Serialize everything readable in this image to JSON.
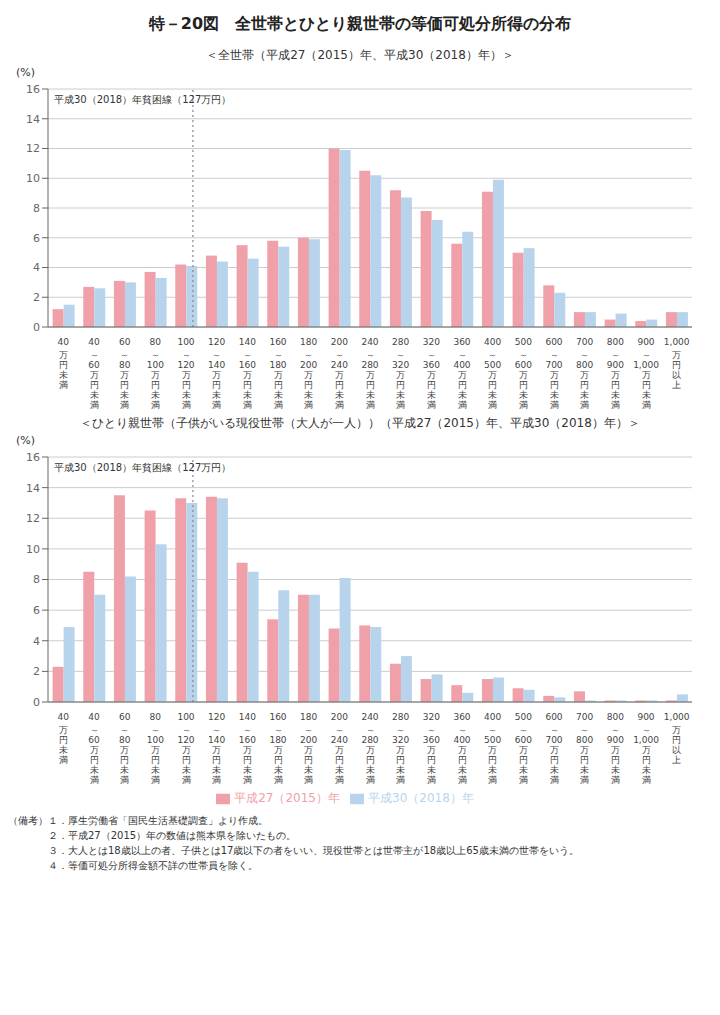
{
  "title": "特－20図　全世帯とひとり親世帯の等価可処分所得の分布",
  "footnotes": [
    "（備考）１．厚生労働省「国民生活基礎調査」より作成。",
    "　　　　２．平成27（2015）年の数値は熊本県を除いたもの。",
    "　　　　３．大人とは18歳以上の者、子供とは17歳以下の者をいい、現役世帯とは世帯主が18歳以上65歳未満の世帯をいう。",
    "　　　　４．等価可処分所得金額不詳の世帯員を除く。"
  ],
  "chart_data": [
    {
      "type": "bar",
      "subtitle": "＜全世帯（平成27（2015）年、平成30（2018）年）＞",
      "ylabel": "(%)",
      "categories": [
        "40\n万\n円\n未\n満",
        "40\n～\n60\n万\n円\n未\n満",
        "60\n～\n80\n万\n円\n未\n満",
        "80\n～\n100\n万\n円\n未\n満",
        "100\n～\n120\n万\n円\n未\n満",
        "120\n～\n140\n万\n円\n未\n満",
        "140\n～\n160\n万\n円\n未\n満",
        "160\n～\n180\n万\n円\n未\n満",
        "180\n～\n200\n万\n円\n未\n満",
        "200\n～\n240\n万\n円\n未\n満",
        "240\n～\n280\n万\n円\n未\n満",
        "280\n～\n320\n万\n円\n未\n満",
        "320\n～\n360\n万\n円\n未\n満",
        "360\n～\n400\n万\n円\n未\n満",
        "400\n～\n500\n万\n円\n未\n満",
        "500\n～\n600\n万\n円\n未\n満",
        "600\n～\n700\n万\n円\n未\n満",
        "700\n～\n800\n万\n円\n未\n満",
        "800\n～\n900\n万\n円\n未\n満",
        "900\n～\n1,000\n万\n円\n未\n満",
        "1,000\n万\n円\n以\n上"
      ],
      "series": [
        {
          "name": "平成27（2015）年",
          "color": "#F0A0A8",
          "values": [
            1.2,
            2.7,
            3.1,
            3.7,
            4.2,
            4.8,
            5.5,
            5.8,
            6.0,
            12.0,
            10.5,
            9.2,
            7.8,
            5.6,
            9.1,
            5.0,
            2.8,
            1.0,
            0.5,
            0.4,
            1.0
          ]
        },
        {
          "name": "平成30（2018）年",
          "color": "#B8D4EC",
          "values": [
            1.5,
            2.6,
            3.0,
            3.3,
            4.1,
            4.4,
            4.6,
            5.4,
            5.9,
            11.9,
            10.2,
            8.7,
            7.2,
            6.4,
            9.9,
            5.3,
            2.3,
            1.0,
            0.9,
            0.5,
            1.0
          ]
        }
      ],
      "ylim": [
        0,
        16
      ],
      "yticks": [
        0,
        2,
        4,
        6,
        8,
        10,
        12,
        14,
        16
      ],
      "grid": true,
      "annotations": [
        {
          "text": "平成30（2018）年貧困線（127万円）",
          "vline_x": 4.5
        }
      ]
    },
    {
      "type": "bar",
      "subtitle": "＜ひとり親世帯（子供がいる現役世帯（大人が一人））（平成27（2015）年、平成30（2018）年）＞",
      "ylabel": "(%)",
      "categories": [
        "40\n万\n円\n未\n満",
        "40\n～\n60\n万\n円\n未\n満",
        "60\n～\n80\n万\n円\n未\n満",
        "80\n～\n100\n万\n円\n未\n満",
        "100\n～\n120\n万\n円\n未\n満",
        "120\n～\n140\n万\n円\n未\n満",
        "140\n～\n160\n万\n円\n未\n満",
        "160\n～\n180\n万\n円\n未\n満",
        "180\n～\n200\n万\n円\n未\n満",
        "200\n～\n240\n万\n円\n未\n満",
        "240\n～\n280\n万\n円\n未\n満",
        "280\n～\n320\n万\n円\n未\n満",
        "320\n～\n360\n万\n円\n未\n満",
        "360\n～\n400\n万\n円\n未\n満",
        "400\n～\n500\n万\n円\n未\n満",
        "500\n～\n600\n万\n円\n未\n満",
        "600\n～\n700\n万\n円\n未\n満",
        "700\n～\n800\n万\n円\n未\n満",
        "800\n～\n900\n万\n円\n未\n満",
        "900\n～\n1,000\n万\n円\n未\n満",
        "1,000\n万\n円\n以\n上"
      ],
      "series": [
        {
          "name": "平成27（2015）年",
          "color": "#F0A0A8",
          "values": [
            2.3,
            8.5,
            13.5,
            12.5,
            13.3,
            13.4,
            9.1,
            5.4,
            7.0,
            4.8,
            5.0,
            2.5,
            1.5,
            1.1,
            1.5,
            0.9,
            0.4,
            0.7,
            0.1,
            0.1,
            0.1
          ]
        },
        {
          "name": "平成30（2018）年",
          "color": "#B8D4EC",
          "values": [
            4.9,
            7.0,
            8.2,
            10.3,
            13.0,
            13.3,
            8.5,
            7.3,
            7.0,
            8.1,
            4.9,
            3.0,
            1.8,
            0.6,
            1.6,
            0.8,
            0.3,
            0.1,
            0.1,
            0.1,
            0.5
          ]
        }
      ],
      "ylim": [
        0,
        16
      ],
      "yticks": [
        0,
        2,
        4,
        6,
        8,
        10,
        12,
        14,
        16
      ],
      "grid": true,
      "legend": "bottom",
      "annotations": [
        {
          "text": "平成30（2018）年貧困線（127万円）",
          "vline_x": 4.5
        }
      ]
    }
  ]
}
